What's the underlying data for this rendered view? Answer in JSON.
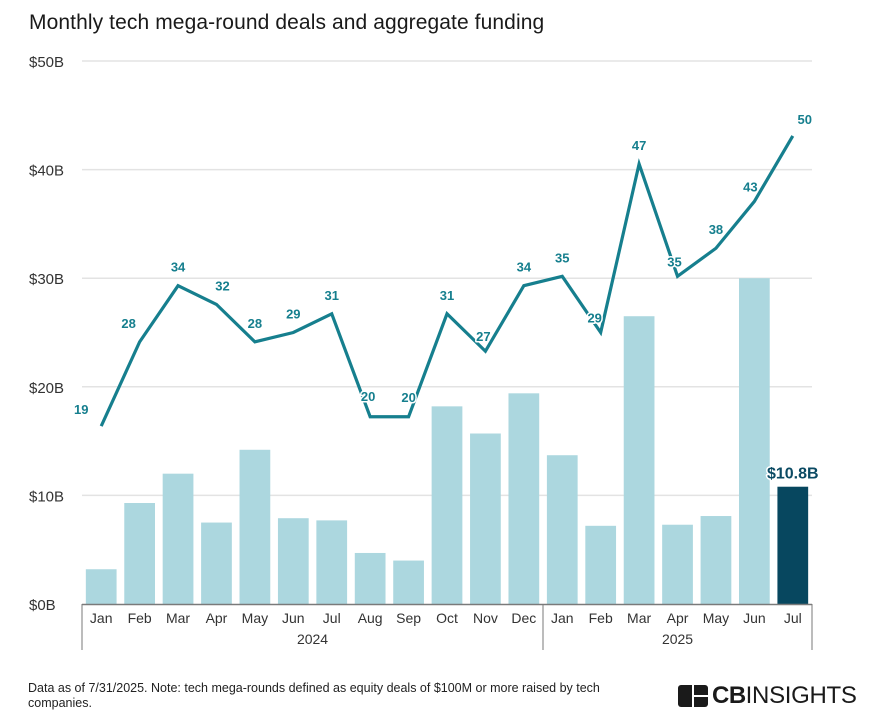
{
  "chart_data": {
    "type": "bar",
    "combo": "bar+line",
    "title": "Monthly tech mega-round deals and aggregate funding",
    "xlabel": "",
    "ylabel": "",
    "ylim": [
      0,
      50
    ],
    "y2lim": [
      0,
      58
    ],
    "yticks": [
      0,
      10,
      20,
      30,
      40,
      50
    ],
    "ytick_labels": [
      "$0B",
      "$10B",
      "$20B",
      "$30B",
      "$40B",
      "$50B"
    ],
    "grid": true,
    "legend": "none",
    "categories": [
      "Jan",
      "Feb",
      "Mar",
      "Apr",
      "May",
      "Jun",
      "Jul",
      "Aug",
      "Sep",
      "Oct",
      "Nov",
      "Dec",
      "Jan",
      "Feb",
      "Mar",
      "Apr",
      "May",
      "Jun",
      "Jul"
    ],
    "year_groups": [
      {
        "label": "2024",
        "start": 0,
        "end": 11
      },
      {
        "label": "2025",
        "start": 12,
        "end": 18
      }
    ],
    "series": [
      {
        "name": "Aggregate funding ($B)",
        "type": "bar",
        "axis": "left",
        "values": [
          3.2,
          9.3,
          12.0,
          7.5,
          14.2,
          7.9,
          7.7,
          4.7,
          4.0,
          18.2,
          15.7,
          19.4,
          13.7,
          7.2,
          26.5,
          7.3,
          8.1,
          30.0,
          10.8
        ],
        "highlight_index": 18,
        "highlight_label": "$10.8B"
      },
      {
        "name": "Deals",
        "type": "line",
        "axis": "right-hidden",
        "values": [
          19,
          28,
          34,
          32,
          28,
          29,
          31,
          20,
          20,
          31,
          27,
          34,
          35,
          29,
          47,
          35,
          38,
          43,
          50
        ],
        "labels": [
          "19",
          "28",
          "34",
          "32",
          "28",
          "29",
          "31",
          "20",
          "20",
          "31",
          "27",
          "34",
          "35",
          "29",
          "47",
          "35",
          "38",
          "43",
          "50"
        ]
      }
    ],
    "colors": {
      "bar": "#acd7df",
      "bar_highlight": "#07475f",
      "line": "#167f8e",
      "grid": "#e3e3e3",
      "axis": "#7a7a7a"
    }
  },
  "footnote": "Data as of 7/31/2025. Note: tech mega-rounds defined as equity deals of $100M or more raised by tech companies.",
  "logo": {
    "bold": "CB",
    "light": "INSIGHTS",
    "icon": "cb-insights-logo-icon"
  }
}
